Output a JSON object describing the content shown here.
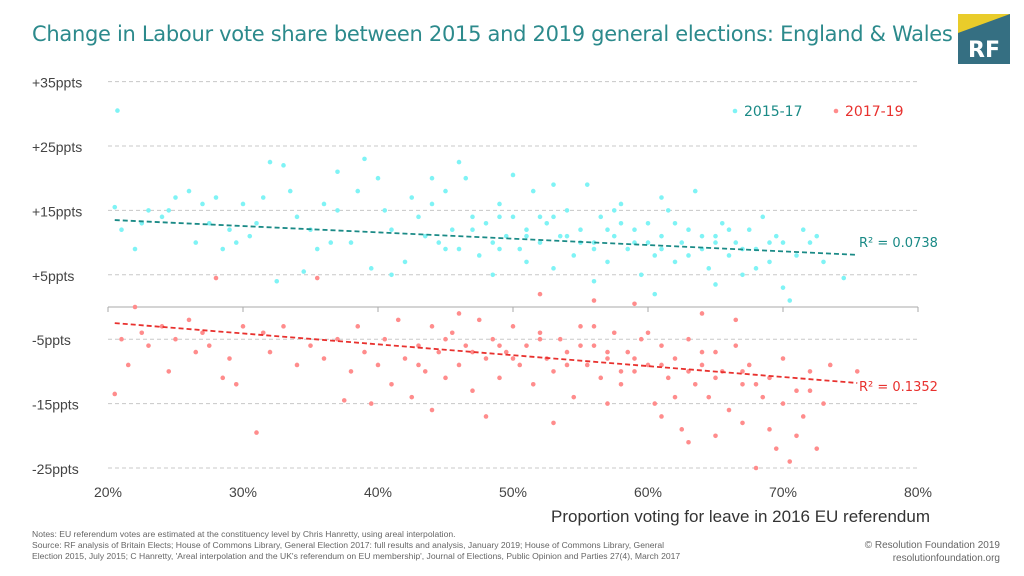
{
  "title": "Change in Labour vote share between 2015 and 2019 general elections: England & Wales",
  "logo": {
    "text": "RF",
    "colors": {
      "box": "#356f82",
      "triangle": "#e9cc2a"
    }
  },
  "notes": {
    "line1": "Notes: EU referendum votes are estimated  at the constituency level by Chris Hanretty, using areal interpolation.",
    "line2": "Source: RF analysis of Britain Elects; House of Commons Library, General Election 2017: full results and analysis, January 2019; House of Commons Library, General",
    "line3": "Election 2015, July 2015; C Hanretty, 'Areal interpolation and the UK's referendum on EU membership', Journal of Elections, Public Opinion and Parties 27(4), March 2017"
  },
  "copyright": {
    "line1": "© Resolution Foundation 2019",
    "line2": "resolutionfoundation.org"
  },
  "chart_data": {
    "type": "scatter",
    "xlabel": "Proportion voting for leave in 2016 EU referendum",
    "ylabel": "",
    "xlim": [
      20,
      80
    ],
    "ylim": [
      -30,
      35
    ],
    "xticks": [
      {
        "v": 20,
        "label": "20%"
      },
      {
        "v": 30,
        "label": "30%"
      },
      {
        "v": 40,
        "label": "40%"
      },
      {
        "v": 50,
        "label": "50%"
      },
      {
        "v": 60,
        "label": "60%"
      },
      {
        "v": 70,
        "label": "70%"
      },
      {
        "v": 80,
        "label": "80%"
      }
    ],
    "yticks": [
      {
        "v": 35,
        "label": "+35ppts"
      },
      {
        "v": 25,
        "label": "+25ppts"
      },
      {
        "v": 15,
        "label": "+15ppts"
      },
      {
        "v": 5,
        "label": "+5ppts"
      },
      {
        "v": -5,
        "label": "-5ppts"
      },
      {
        "v": -15,
        "label": "-15ppts"
      },
      {
        "v": -25,
        "label": "-25ppts"
      }
    ],
    "grid": true,
    "legend": "top-right",
    "series": [
      {
        "name": "2015-17",
        "color": "#7ff3f5",
        "trend_color": "#1a8a86",
        "trend": {
          "x": [
            20.5,
            75.5
          ],
          "y": [
            13.5,
            8.1
          ],
          "r2_label": "R² = 0.0738"
        },
        "points": [
          [
            20.7,
            30.5
          ],
          [
            20.5,
            15.5
          ],
          [
            21,
            12
          ],
          [
            22,
            9
          ],
          [
            23,
            15
          ],
          [
            24,
            14
          ],
          [
            25,
            17
          ],
          [
            26,
            18
          ],
          [
            26.5,
            10
          ],
          [
            27,
            16
          ],
          [
            28,
            17
          ],
          [
            29,
            12
          ],
          [
            30,
            16
          ],
          [
            30.5,
            11
          ],
          [
            22.5,
            13
          ],
          [
            24.5,
            15
          ],
          [
            27.5,
            13
          ],
          [
            29.5,
            10
          ],
          [
            31,
            13
          ],
          [
            32,
            22.5
          ],
          [
            33,
            22
          ],
          [
            33.5,
            18
          ],
          [
            34,
            14
          ],
          [
            35,
            12
          ],
          [
            35.5,
            9
          ],
          [
            36,
            16
          ],
          [
            37,
            15
          ],
          [
            38,
            10
          ],
          [
            38.5,
            18
          ],
          [
            39,
            23
          ],
          [
            40,
            20
          ],
          [
            40.5,
            15
          ],
          [
            41,
            12
          ],
          [
            42,
            7
          ],
          [
            42.5,
            17
          ],
          [
            43,
            14
          ],
          [
            44,
            16
          ],
          [
            44.5,
            10
          ],
          [
            45,
            18
          ],
          [
            45.5,
            12
          ],
          [
            46,
            22.5
          ],
          [
            46.5,
            20
          ],
          [
            47,
            14
          ],
          [
            47.5,
            8
          ],
          [
            48,
            13
          ],
          [
            48.5,
            10
          ],
          [
            49,
            16
          ],
          [
            49.5,
            11
          ],
          [
            50,
            14
          ],
          [
            50.5,
            9
          ],
          [
            51,
            12
          ],
          [
            51.5,
            18
          ],
          [
            52,
            10
          ],
          [
            52.5,
            13
          ],
          [
            53,
            6
          ],
          [
            53.5,
            11
          ],
          [
            54,
            15
          ],
          [
            54.5,
            8
          ],
          [
            55,
            12
          ],
          [
            55.5,
            19
          ],
          [
            56,
            10
          ],
          [
            56.5,
            14
          ],
          [
            57,
            7
          ],
          [
            57.5,
            11
          ],
          [
            58,
            16
          ],
          [
            58.5,
            9
          ],
          [
            59,
            12
          ],
          [
            59.5,
            5
          ],
          [
            60,
            13
          ],
          [
            60.5,
            8
          ],
          [
            61,
            11
          ],
          [
            61.5,
            15
          ],
          [
            62,
            7
          ],
          [
            62.5,
            10
          ],
          [
            63,
            12
          ],
          [
            63.5,
            18
          ],
          [
            64,
            9
          ],
          [
            64.5,
            6
          ],
          [
            65,
            11
          ],
          [
            65.5,
            13
          ],
          [
            66,
            8
          ],
          [
            66.5,
            10
          ],
          [
            67,
            5
          ],
          [
            67.5,
            12
          ],
          [
            68,
            9
          ],
          [
            68.5,
            14
          ],
          [
            69,
            7
          ],
          [
            69.5,
            11
          ],
          [
            70,
            3
          ],
          [
            70.5,
            1
          ],
          [
            71,
            8
          ],
          [
            71.5,
            12
          ],
          [
            72,
            10
          ],
          [
            72.5,
            11
          ],
          [
            73,
            7
          ],
          [
            74.5,
            4.5
          ],
          [
            32.5,
            4
          ],
          [
            34.5,
            5.5
          ],
          [
            36.5,
            10
          ],
          [
            39.5,
            6
          ],
          [
            43.5,
            11
          ],
          [
            46,
            9
          ],
          [
            48.5,
            5
          ],
          [
            50,
            20.5
          ],
          [
            52,
            14
          ],
          [
            54,
            11
          ],
          [
            56,
            9
          ],
          [
            58,
            13
          ],
          [
            60,
            10
          ],
          [
            62,
            13
          ],
          [
            64,
            11
          ],
          [
            66,
            12
          ],
          [
            68,
            6
          ],
          [
            70,
            10
          ],
          [
            47,
            12
          ],
          [
            49,
            9
          ],
          [
            51,
            11
          ],
          [
            53,
            14
          ],
          [
            55,
            10
          ],
          [
            57,
            12
          ],
          [
            59,
            10
          ],
          [
            61,
            9
          ],
          [
            63,
            8
          ],
          [
            65,
            10
          ],
          [
            67,
            9
          ],
          [
            69,
            10
          ],
          [
            45,
            9
          ],
          [
            44,
            20
          ],
          [
            41,
            5
          ],
          [
            37,
            21
          ],
          [
            31.5,
            17
          ],
          [
            28.5,
            9
          ],
          [
            60.5,
            2
          ],
          [
            65,
            3.5
          ],
          [
            56,
            4
          ],
          [
            61,
            17
          ],
          [
            57.5,
            15
          ],
          [
            53,
            19
          ],
          [
            49,
            14
          ],
          [
            51,
            7
          ]
        ]
      },
      {
        "name": "2017-19",
        "color": "#ff8c8c",
        "trend_color": "#e8312e",
        "trend": {
          "x": [
            20.5,
            75.5
          ],
          "y": [
            -2.5,
            -11.8
          ],
          "r2_label": "R² = 0.1352"
        },
        "points": [
          [
            20.5,
            -13.5
          ],
          [
            21,
            -5
          ],
          [
            21.5,
            -9
          ],
          [
            22,
            0
          ],
          [
            22.5,
            -4
          ],
          [
            23,
            -6
          ],
          [
            24,
            -3
          ],
          [
            24.5,
            -10
          ],
          [
            25,
            -5
          ],
          [
            26,
            -2
          ],
          [
            26.5,
            -7
          ],
          [
            27,
            -4
          ],
          [
            27.5,
            -6
          ],
          [
            28,
            4.5
          ],
          [
            28.5,
            -11
          ],
          [
            29,
            -8
          ],
          [
            29.5,
            -12
          ],
          [
            30,
            -3
          ],
          [
            31,
            -19.5
          ],
          [
            31.5,
            -4
          ],
          [
            32,
            -7
          ],
          [
            33,
            -3
          ],
          [
            34,
            -9
          ],
          [
            35,
            -6
          ],
          [
            35.5,
            4.5
          ],
          [
            36,
            -8
          ],
          [
            37,
            -5
          ],
          [
            37.5,
            -14.5
          ],
          [
            38,
            -10
          ],
          [
            38.5,
            -3
          ],
          [
            39,
            -7
          ],
          [
            39.5,
            -15
          ],
          [
            40,
            -9
          ],
          [
            40.5,
            -5
          ],
          [
            41,
            -12
          ],
          [
            41.5,
            -2
          ],
          [
            42,
            -8
          ],
          [
            42.5,
            -14
          ],
          [
            43,
            -6
          ],
          [
            43.5,
            -10
          ],
          [
            44,
            -3
          ],
          [
            44.5,
            -7
          ],
          [
            45,
            -11
          ],
          [
            45.5,
            -4
          ],
          [
            46,
            -9
          ],
          [
            46.5,
            -6
          ],
          [
            47,
            -13
          ],
          [
            47.5,
            -2
          ],
          [
            48,
            -8
          ],
          [
            48.5,
            -5
          ],
          [
            49,
            -11
          ],
          [
            49.5,
            -7
          ],
          [
            50,
            -3
          ],
          [
            50.5,
            -9
          ],
          [
            51,
            -6
          ],
          [
            51.5,
            -12
          ],
          [
            52,
            -4
          ],
          [
            52.5,
            -8
          ],
          [
            53,
            -10
          ],
          [
            53.5,
            -5
          ],
          [
            54,
            -7
          ],
          [
            54.5,
            -14
          ],
          [
            55,
            -3
          ],
          [
            55.5,
            -9
          ],
          [
            56,
            -6
          ],
          [
            56.5,
            -11
          ],
          [
            57,
            -8
          ],
          [
            57.5,
            -4
          ],
          [
            58,
            -12
          ],
          [
            58.5,
            -7
          ],
          [
            59,
            -10
          ],
          [
            59.5,
            -5
          ],
          [
            60,
            -9
          ],
          [
            60.5,
            -15
          ],
          [
            61,
            -6
          ],
          [
            61.5,
            -11
          ],
          [
            62,
            -8
          ],
          [
            62.5,
            -19
          ],
          [
            63,
            -5
          ],
          [
            63.5,
            -12
          ],
          [
            64,
            -9
          ],
          [
            64.5,
            -14
          ],
          [
            65,
            -7
          ],
          [
            65.5,
            -10
          ],
          [
            66,
            -16
          ],
          [
            66.5,
            -6
          ],
          [
            67,
            -12
          ],
          [
            67.5,
            -9
          ],
          [
            68,
            -25
          ],
          [
            68.5,
            -14
          ],
          [
            69,
            -11
          ],
          [
            69.5,
            -22
          ],
          [
            70,
            -8
          ],
          [
            70.5,
            -24
          ],
          [
            71,
            -13
          ],
          [
            71.5,
            -17
          ],
          [
            72,
            -10
          ],
          [
            72.5,
            -22
          ],
          [
            73,
            -15
          ],
          [
            73.5,
            -9
          ],
          [
            75.5,
            -10
          ],
          [
            52,
            2
          ],
          [
            56,
            1
          ],
          [
            59,
            0.5
          ],
          [
            64,
            -1
          ],
          [
            66.5,
            -2
          ],
          [
            46,
            -1
          ],
          [
            44,
            -16
          ],
          [
            48,
            -17
          ],
          [
            53,
            -18
          ],
          [
            57,
            -15
          ],
          [
            61,
            -17
          ],
          [
            63,
            -21
          ],
          [
            65,
            -20
          ],
          [
            67,
            -18
          ],
          [
            69,
            -19
          ],
          [
            71,
            -20
          ],
          [
            72,
            -13
          ],
          [
            62,
            -14
          ],
          [
            58,
            -10
          ],
          [
            54,
            -9
          ],
          [
            50,
            -8
          ],
          [
            47,
            -7
          ],
          [
            45,
            -5
          ],
          [
            43,
            -9
          ],
          [
            55,
            -6
          ],
          [
            57,
            -7
          ],
          [
            59,
            -8
          ],
          [
            61,
            -9
          ],
          [
            63,
            -10
          ],
          [
            65,
            -11
          ],
          [
            67,
            -10
          ],
          [
            60,
            -4
          ],
          [
            56,
            -3
          ],
          [
            52,
            -5
          ],
          [
            49,
            -6
          ],
          [
            64,
            -7
          ],
          [
            68,
            -12
          ],
          [
            70,
            -15
          ]
        ]
      }
    ]
  }
}
